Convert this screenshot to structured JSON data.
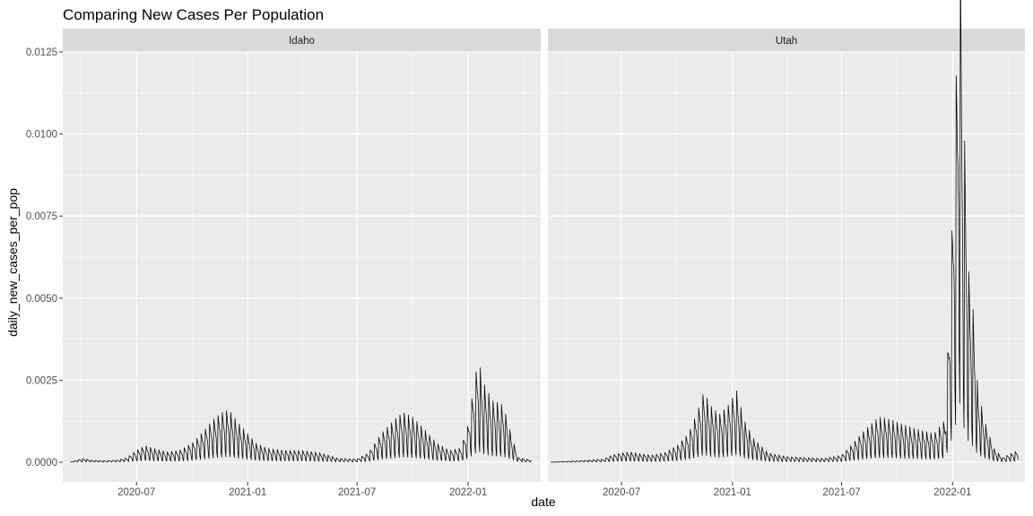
{
  "chart_data": {
    "type": "line",
    "title": "Comparing New Cases Per Population",
    "xlabel": "date",
    "ylabel": "daily_new_cases_per_pop",
    "facets": [
      "Idaho",
      "Utah"
    ],
    "x_ticks": [
      "2020-07",
      "2021-01",
      "2021-07",
      "2022-01"
    ],
    "y_ticks": [
      "0.0000",
      "0.0025",
      "0.0050",
      "0.0075",
      "0.0100",
      "0.0125"
    ],
    "xlim": [
      "2020-03-01",
      "2022-05-01"
    ],
    "ylim": [
      -0.0006,
      0.0125
    ],
    "grid": true,
    "legend": "none",
    "line_color": "#000000",
    "panel_background": "#ebebeb",
    "strip_background": "#d9d9d9",
    "series": [
      {
        "name": "Idaho",
        "points": [
          [
            "2020-03-13",
            0.0
          ],
          [
            "2020-03-25",
            5e-05
          ],
          [
            "2020-04-05",
            8e-05
          ],
          [
            "2020-04-20",
            4e-05
          ],
          [
            "2020-05-10",
            3e-05
          ],
          [
            "2020-06-01",
            5e-05
          ],
          [
            "2020-06-15",
            0.0001
          ],
          [
            "2020-07-01",
            0.00025
          ],
          [
            "2020-07-15",
            0.00035
          ],
          [
            "2020-08-01",
            0.00028
          ],
          [
            "2020-08-20",
            0.00022
          ],
          [
            "2020-09-10",
            0.00025
          ],
          [
            "2020-10-01",
            0.0004
          ],
          [
            "2020-10-20",
            0.00065
          ],
          [
            "2020-11-05",
            0.0009
          ],
          [
            "2020-11-20",
            0.00105
          ],
          [
            "2020-12-01",
            0.0011
          ],
          [
            "2020-12-15",
            0.00085
          ],
          [
            "2021-01-01",
            0.0006
          ],
          [
            "2021-01-15",
            0.0004
          ],
          [
            "2021-02-01",
            0.0003
          ],
          [
            "2021-03-01",
            0.00025
          ],
          [
            "2021-04-01",
            0.00025
          ],
          [
            "2021-05-01",
            0.0002
          ],
          [
            "2021-06-01",
            8e-05
          ],
          [
            "2021-07-01",
            7e-05
          ],
          [
            "2021-07-20",
            0.0002
          ],
          [
            "2021-08-10",
            0.0006
          ],
          [
            "2021-09-01",
            0.0009
          ],
          [
            "2021-09-15",
            0.00105
          ],
          [
            "2021-10-01",
            0.00095
          ],
          [
            "2021-10-20",
            0.0007
          ],
          [
            "2021-11-10",
            0.0004
          ],
          [
            "2021-12-01",
            0.00025
          ],
          [
            "2021-12-20",
            0.0003
          ],
          [
            "2022-01-01",
            0.0008
          ],
          [
            "2022-01-10",
            0.0016
          ],
          [
            "2022-01-18",
            0.0022
          ],
          [
            "2022-01-25",
            0.0017
          ],
          [
            "2022-02-10",
            0.0013
          ],
          [
            "2022-02-28",
            0.0012
          ],
          [
            "2022-03-15",
            0.0005
          ],
          [
            "2022-03-25",
            0.0001
          ],
          [
            "2022-04-15",
            5e-05
          ]
        ]
      },
      {
        "name": "Utah",
        "points": [
          [
            "2020-03-06",
            0.0
          ],
          [
            "2020-04-01",
            2e-05
          ],
          [
            "2020-05-01",
            4e-05
          ],
          [
            "2020-06-01",
            7e-05
          ],
          [
            "2020-06-15",
            0.00015
          ],
          [
            "2020-07-01",
            0.0002
          ],
          [
            "2020-07-15",
            0.00022
          ],
          [
            "2020-08-01",
            0.00018
          ],
          [
            "2020-08-20",
            0.00015
          ],
          [
            "2020-09-10",
            0.0002
          ],
          [
            "2020-10-01",
            0.00035
          ],
          [
            "2020-10-20",
            0.0006
          ],
          [
            "2020-11-05",
            0.0011
          ],
          [
            "2020-11-15",
            0.0015
          ],
          [
            "2020-11-25",
            0.0012
          ],
          [
            "2020-12-10",
            0.001
          ],
          [
            "2020-12-25",
            0.0012
          ],
          [
            "2021-01-08",
            0.0015
          ],
          [
            "2021-01-20",
            0.0009
          ],
          [
            "2021-02-05",
            0.0005
          ],
          [
            "2021-03-01",
            0.0002
          ],
          [
            "2021-04-01",
            0.00012
          ],
          [
            "2021-05-01",
            0.0001
          ],
          [
            "2021-06-01",
            8e-05
          ],
          [
            "2021-07-01",
            0.00015
          ],
          [
            "2021-07-20",
            0.0004
          ],
          [
            "2021-08-10",
            0.0007
          ],
          [
            "2021-09-01",
            0.00095
          ],
          [
            "2021-09-20",
            0.0009
          ],
          [
            "2021-10-10",
            0.0008
          ],
          [
            "2021-11-01",
            0.0007
          ],
          [
            "2021-12-01",
            0.0006
          ],
          [
            "2021-12-20",
            0.0009
          ],
          [
            "2021-12-30",
            0.0044
          ],
          [
            "2022-01-05",
            0.0072
          ],
          [
            "2022-01-10",
            0.0095
          ],
          [
            "2022-01-13",
            0.012
          ],
          [
            "2022-01-18",
            0.0075
          ],
          [
            "2022-01-22",
            0.0065
          ],
          [
            "2022-01-28",
            0.004
          ],
          [
            "2022-02-05",
            0.0031
          ],
          [
            "2022-02-12",
            0.0015
          ],
          [
            "2022-02-25",
            0.0008
          ],
          [
            "2022-03-10",
            0.0003
          ],
          [
            "2022-03-25",
            0.0001
          ],
          [
            "2022-04-10",
            0.0002
          ],
          [
            "2022-04-20",
            0.00025
          ]
        ]
      }
    ]
  }
}
